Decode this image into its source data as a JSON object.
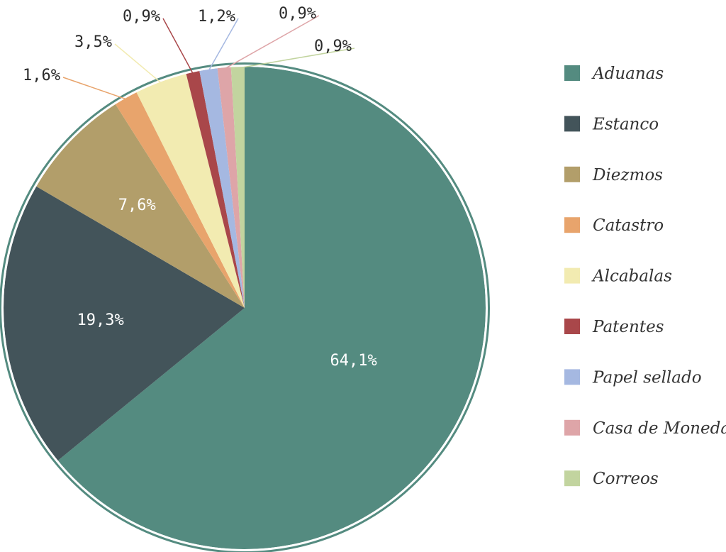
{
  "chart_data": {
    "type": "pie",
    "title": "",
    "start_angle_deg": 0,
    "direction": "clockwise",
    "legend_position": "right",
    "slices": [
      {
        "name": "Aduanas",
        "value": 64.1,
        "label": "64,1%",
        "color": "#548b80",
        "label_placement": "inside"
      },
      {
        "name": "Estanco",
        "value": 19.3,
        "label": "19,3%",
        "color": "#43545a",
        "label_placement": "inside"
      },
      {
        "name": "Diezmos",
        "value": 7.6,
        "label": "7,6%",
        "color": "#b29e6a",
        "label_placement": "inside"
      },
      {
        "name": "Catastro",
        "value": 1.6,
        "label": "1,6%",
        "color": "#e8a46c",
        "label_placement": "outside"
      },
      {
        "name": "Alcabalas",
        "value": 3.5,
        "label": "3,5%",
        "color": "#f2ebb1",
        "label_placement": "outside"
      },
      {
        "name": "Patentes",
        "value": 0.9,
        "label": "0,9%",
        "color": "#a9474a",
        "label_placement": "outside"
      },
      {
        "name": "Papel sellado",
        "value": 1.2,
        "label": "1,2%",
        "color": "#a5b8e1",
        "label_placement": "outside"
      },
      {
        "name": "Casa de Moneda",
        "value": 0.9,
        "label": "0,9%",
        "color": "#dea5a8",
        "label_placement": "outside"
      },
      {
        "name": "Correos",
        "value": 0.9,
        "label": "0,9%",
        "color": "#c2d49f",
        "label_placement": "outside"
      }
    ]
  }
}
